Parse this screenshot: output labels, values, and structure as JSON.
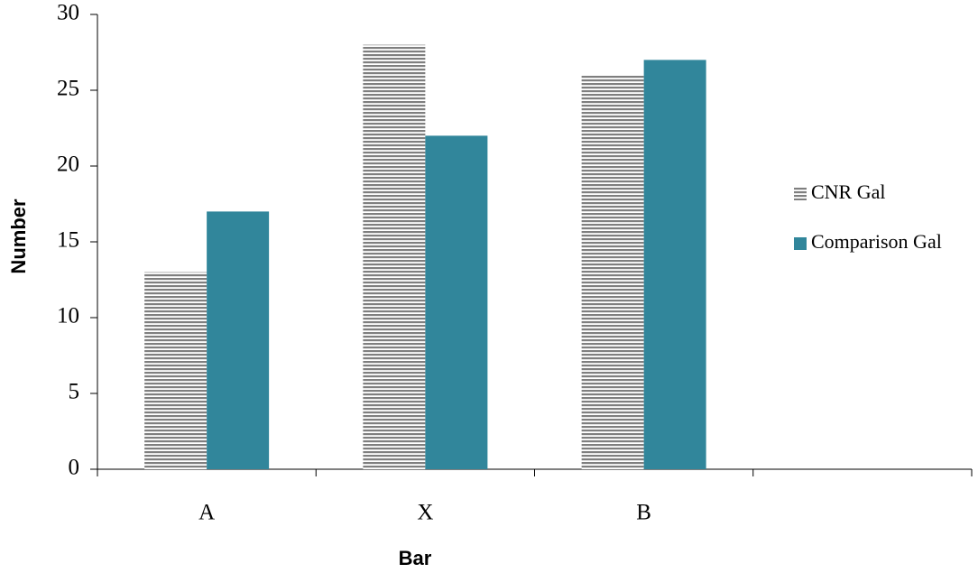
{
  "chart_data": {
    "type": "bar",
    "x_label": "Bar",
    "y_label": "Number",
    "categories": [
      "A",
      "X",
      "B",
      null
    ],
    "series": [
      {
        "name": "CNR Gal",
        "color": "#7f7f7f",
        "hatch": "horizontal",
        "values": [
          13,
          28,
          26,
          null
        ]
      },
      {
        "name": "Comparison Gal",
        "color": "#31869b",
        "values": [
          17,
          22,
          27,
          null
        ]
      }
    ],
    "ylim": [
      0,
      30
    ],
    "yticks": [
      0,
      5,
      10,
      15,
      20,
      25,
      30
    ],
    "grid": false,
    "legend": "right"
  }
}
